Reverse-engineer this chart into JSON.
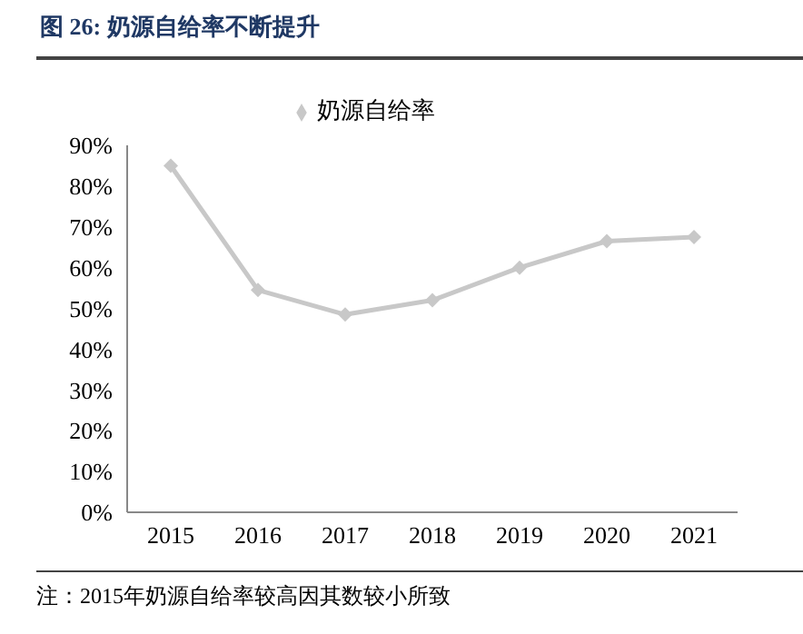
{
  "chart_data": {
    "type": "line",
    "title": "图 26: 奶源自给率不断提升",
    "categories": [
      "2015",
      "2016",
      "2017",
      "2018",
      "2019",
      "2020",
      "2021"
    ],
    "series": [
      {
        "name": "奶源自给率",
        "color": "#c8c8c8",
        "values": [
          85,
          54.5,
          48.5,
          52,
          60,
          66.5,
          67.5
        ]
      }
    ],
    "ylim": [
      0,
      90
    ],
    "yticks": [
      {
        "value": 0,
        "label": "0%"
      },
      {
        "value": 10,
        "label": "10%"
      },
      {
        "value": 20,
        "label": "20%"
      },
      {
        "value": 30,
        "label": "30%"
      },
      {
        "value": 40,
        "label": "40%"
      },
      {
        "value": 50,
        "label": "50%"
      },
      {
        "value": 60,
        "label": "60%"
      },
      {
        "value": 70,
        "label": "70%"
      },
      {
        "value": 80,
        "label": "80%"
      },
      {
        "value": 90,
        "label": "90%"
      }
    ],
    "grid": false,
    "legend": "top",
    "marker": "diamond",
    "line_style": "solid",
    "annotations": [
      "注：2015年奶源自给率较高因其数较小所致"
    ]
  }
}
